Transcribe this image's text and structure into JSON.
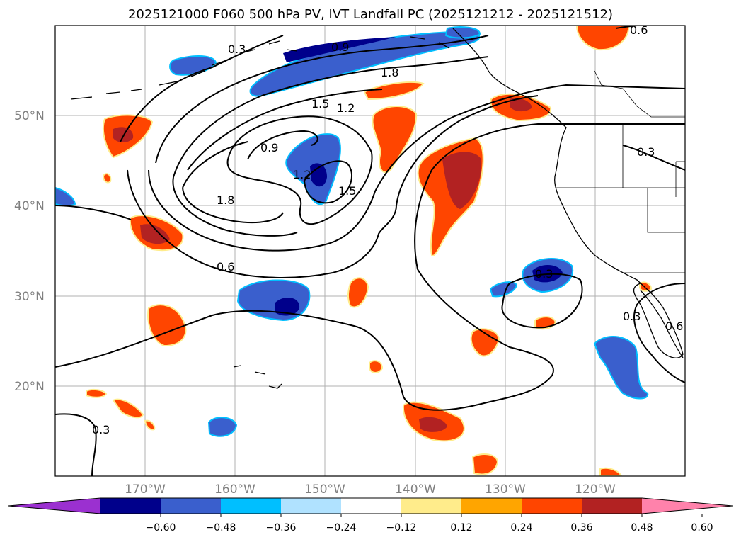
{
  "title": "2025121000 F060 500 hPa PV, IVT Landfall PC (2025121212 - 2025121512)",
  "lat_labels": [
    "50°N",
    "40°N",
    "30°N",
    "20°N"
  ],
  "lon_labels": [
    "170°W",
    "160°W",
    "150°W",
    "140°W",
    "130°W",
    "120°W"
  ],
  "contour_labels": [
    "0.9",
    "1.8",
    "1.5",
    "1.2",
    "0.9",
    "1.2",
    "1.5",
    "1.8",
    "0.6",
    "0.3",
    "0.3",
    "0.3",
    "0.6",
    "0.3",
    "0.6",
    "0.3"
  ],
  "colorbar": {
    "ticks": [
      "−0.60",
      "−0.48",
      "−0.36",
      "−0.24",
      "−0.12",
      "0.12",
      "0.24",
      "0.36",
      "0.48",
      "0.60"
    ],
    "colors": [
      "#9b30d0",
      "#00008b",
      "#3a5fcd",
      "#00bfff",
      "#b0e2ff",
      "#ffffff",
      "#ffec8b",
      "#ffa500",
      "#ff4500",
      "#b22222",
      "#ff82ab"
    ]
  },
  "colors": {
    "grid": "#b0b0b0",
    "frame": "#000000",
    "contour": "#000000"
  }
}
